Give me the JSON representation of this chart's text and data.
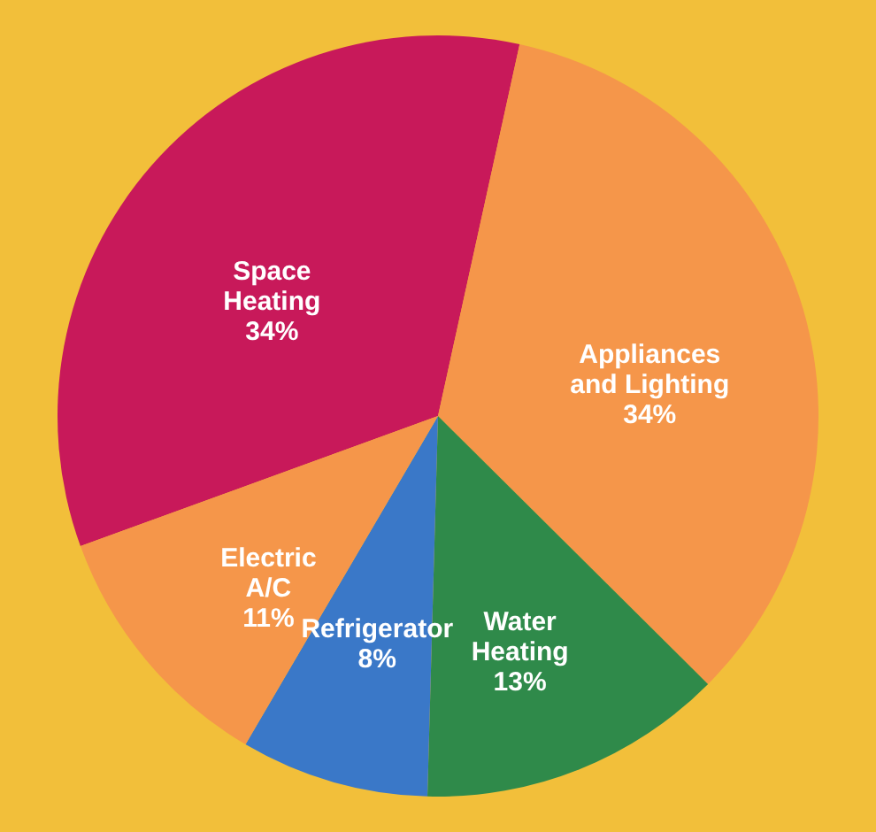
{
  "chart_data": {
    "type": "pie",
    "categories": [
      "Space Heating",
      "Appliances and Lighting",
      "Water Heating",
      "Refrigerator",
      "Electric A/C"
    ],
    "values": [
      34,
      34,
      13,
      8,
      11
    ],
    "value_labels": [
      "34%",
      "34%",
      "13%",
      "8%",
      "11%"
    ],
    "colors": [
      "#c8195a",
      "#f5964a",
      "#2f8a4a",
      "#3a78c8",
      "#f5964a"
    ]
  }
}
